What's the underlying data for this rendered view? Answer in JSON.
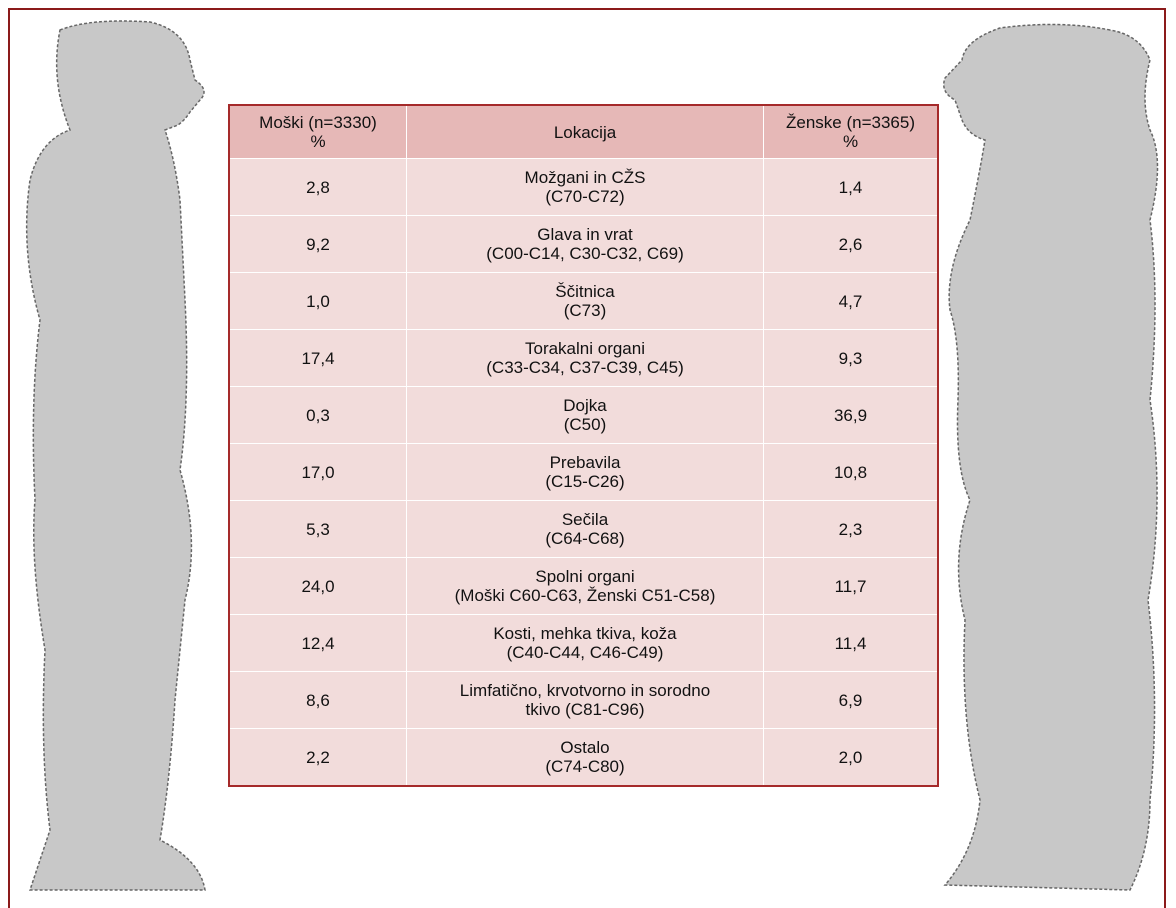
{
  "table": {
    "header": [
      "Moški (n=3330)\n%",
      "Lokacija",
      "Ženske (n=3365)\n%"
    ],
    "rows": [
      [
        "2,8",
        "Možgani in CŽS\n(C70-C72)",
        "1,4"
      ],
      [
        "9,2",
        "Glava in vrat\n(C00-C14, C30-C32, C69)",
        "2,6"
      ],
      [
        "1,0",
        "Ščitnica\n(C73)",
        "4,7"
      ],
      [
        "17,4",
        "Torakalni organi\n(C33-C34, C37-C39, C45)",
        "9,3"
      ],
      [
        "0,3",
        "Dojka\n(C50)",
        "36,9"
      ],
      [
        "17,0",
        "Prebavila\n(C15-C26)",
        "10,8"
      ],
      [
        "5,3",
        "Sečila\n(C64-C68)",
        "2,3"
      ],
      [
        "24,0",
        "Spolni organi\n(Moški C60-C63, Ženski C51-C58)",
        "11,7"
      ],
      [
        "12,4",
        "Kosti, mehka tkiva, koža\n(C40-C44, C46-C49)",
        "11,4"
      ],
      [
        "8,6",
        "Limfatično, krvotvorno in sorodno\ntkivo (C81-C96)",
        "6,9"
      ],
      [
        "2,2",
        "Ostalo\n(C74-C80)",
        "2,0"
      ]
    ]
  }
}
